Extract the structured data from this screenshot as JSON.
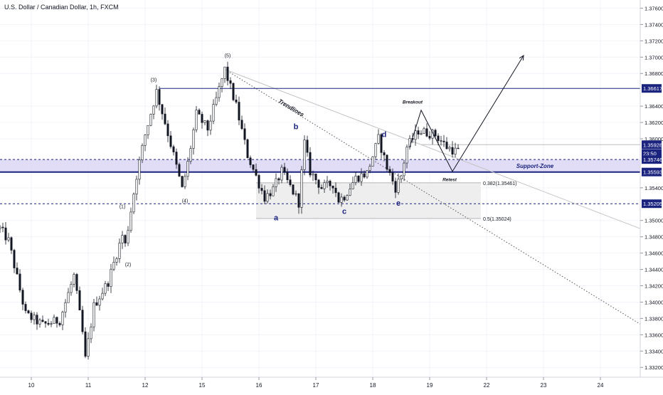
{
  "colors": {
    "background": "#ffffff",
    "grid": "#f0f3fa",
    "candle_up": "#ffffff",
    "candle_down": "#131722",
    "wick": "#131722",
    "axis_text": "#131722",
    "support_zone": "#d6cff2",
    "support_line": "#1a237e",
    "zone_box": "#ebebeb",
    "wave_label": "#1a237e",
    "tag_bg": "#1a237e",
    "tag_text": "#ffffff"
  },
  "chart_data": {
    "type": "candlestick",
    "title": "U.S. Dollar / Canadian Dollar, 1h, FXCM",
    "grid": true,
    "ylim": [
      1.3308,
      1.377
    ],
    "y_ticks": [
      {
        "value": 1.376,
        "label": "1.37600"
      },
      {
        "value": 1.374,
        "label": "1.37400"
      },
      {
        "value": 1.372,
        "label": "1.37200"
      },
      {
        "value": 1.37,
        "label": "1.37000"
      },
      {
        "value": 1.368,
        "label": "1.36800"
      },
      {
        "value": 1.364,
        "label": "1.36400"
      },
      {
        "value": 1.362,
        "label": "1.36200"
      },
      {
        "value": 1.36,
        "label": "1.36000"
      },
      {
        "value": 1.354,
        "label": "1.35400"
      },
      {
        "value": 1.35,
        "label": "1.35000"
      },
      {
        "value": 1.348,
        "label": "1.34800"
      },
      {
        "value": 1.346,
        "label": "1.34600"
      },
      {
        "value": 1.344,
        "label": "1.34400"
      },
      {
        "value": 1.342,
        "label": "1.34200"
      },
      {
        "value": 1.34,
        "label": "1.34000"
      },
      {
        "value": 1.338,
        "label": "1.33800"
      },
      {
        "value": 1.336,
        "label": "1.33600"
      },
      {
        "value": 1.334,
        "label": "1.33400"
      },
      {
        "value": 1.332,
        "label": "1.33200"
      }
    ],
    "x_ticks": [
      {
        "index": 8,
        "label": "10"
      },
      {
        "index": 28,
        "label": "11"
      },
      {
        "index": 48,
        "label": "12"
      },
      {
        "index": 68,
        "label": "15"
      },
      {
        "index": 88,
        "label": "16"
      },
      {
        "index": 108,
        "label": "17"
      },
      {
        "index": 128,
        "label": "18"
      },
      {
        "index": 148,
        "label": "19"
      },
      {
        "index": 168,
        "label": "22"
      },
      {
        "index": 188,
        "label": "23"
      },
      {
        "index": 208,
        "label": "24"
      }
    ],
    "x_range": [
      -3,
      222
    ],
    "price_tags": [
      {
        "value": 1.36617,
        "label": "1.36617"
      },
      {
        "value": 1.35928,
        "label": "1.35928"
      },
      {
        "value": 1.3582,
        "label": "23:50"
      },
      {
        "value": 1.35746,
        "label": "1.35746"
      },
      {
        "value": 1.35593,
        "label": "1.35593"
      },
      {
        "value": 1.35205,
        "label": "1.35205"
      }
    ],
    "key_points": [
      {
        "index": -3,
        "price": 1.349
      },
      {
        "index": 0,
        "price": 1.3475
      },
      {
        "index": 6,
        "price": 1.3385
      },
      {
        "index": 12,
        "price": 1.3372
      },
      {
        "index": 18,
        "price": 1.3378
      },
      {
        "index": 23,
        "price": 1.3432
      },
      {
        "index": 26,
        "price": 1.3362
      },
      {
        "index": 27,
        "price": 1.333
      },
      {
        "index": 30,
        "price": 1.3395
      },
      {
        "index": 35,
        "price": 1.3425
      },
      {
        "index": 40,
        "price": 1.3482
      },
      {
        "index": 41,
        "price": 1.347
      },
      {
        "index": 45,
        "price": 1.3555
      },
      {
        "index": 48,
        "price": 1.3605
      },
      {
        "index": 52,
        "price": 1.3658
      },
      {
        "index": 55,
        "price": 1.362
      },
      {
        "index": 58,
        "price": 1.358
      },
      {
        "index": 61,
        "price": 1.3538
      },
      {
        "index": 63,
        "price": 1.357
      },
      {
        "index": 66,
        "price": 1.363
      },
      {
        "index": 70,
        "price": 1.3612
      },
      {
        "index": 76,
        "price": 1.3685
      },
      {
        "index": 80,
        "price": 1.364
      },
      {
        "index": 84,
        "price": 1.358
      },
      {
        "index": 88,
        "price": 1.3545
      },
      {
        "index": 90,
        "price": 1.3528
      },
      {
        "index": 93,
        "price": 1.3538
      },
      {
        "index": 96,
        "price": 1.356
      },
      {
        "index": 100,
        "price": 1.3535
      },
      {
        "index": 102,
        "price": 1.3522
      },
      {
        "index": 104,
        "price": 1.3595
      },
      {
        "index": 106,
        "price": 1.356
      },
      {
        "index": 110,
        "price": 1.354
      },
      {
        "index": 114,
        "price": 1.3545
      },
      {
        "index": 116,
        "price": 1.3525
      },
      {
        "index": 118,
        "price": 1.353
      },
      {
        "index": 122,
        "price": 1.3552
      },
      {
        "index": 126,
        "price": 1.3558
      },
      {
        "index": 130,
        "price": 1.36
      },
      {
        "index": 133,
        "price": 1.3565
      },
      {
        "index": 136,
        "price": 1.354
      },
      {
        "index": 138,
        "price": 1.3555
      },
      {
        "index": 140,
        "price": 1.359
      },
      {
        "index": 144,
        "price": 1.361
      },
      {
        "index": 150,
        "price": 1.3605
      },
      {
        "index": 154,
        "price": 1.359
      },
      {
        "index": 157,
        "price": 1.3585
      }
    ],
    "candle_end_index": 158,
    "trendlines": [
      {
        "kind": "dotted",
        "p1": {
          "index": 76,
          "price": 1.3685
        },
        "p2": {
          "index": 222,
          "price": 1.3373
        }
      },
      {
        "kind": "solid-light",
        "p1": {
          "index": 76,
          "price": 1.3685
        },
        "p2": {
          "index": 222,
          "price": 1.349
        }
      },
      {
        "kind": "horizontal",
        "p1": {
          "index": 53,
          "price": 1.36617
        },
        "p2": {
          "index": 222,
          "price": 1.36617
        }
      },
      {
        "kind": "horizontal-light",
        "p1": {
          "index": 145,
          "price": 1.35928
        },
        "p2": {
          "index": 222,
          "price": 1.35928
        }
      }
    ],
    "dashed_levels": [
      1.35746,
      1.35205
    ],
    "support_zone": {
      "top": 1.35746,
      "bottom": 1.35593,
      "label": "Support-Zone",
      "line": 1.35593
    },
    "fib_box": {
      "x_start": 87,
      "x_end": 166,
      "top": 1.35461,
      "bottom": 1.35024
    },
    "fib_levels": [
      {
        "value": 1.35461,
        "label": "0.382(1.35461)"
      },
      {
        "value": 1.35024,
        "label": "0.5(1.35024)"
      }
    ],
    "projection_path": [
      {
        "index": 141,
        "price": 1.359
      },
      {
        "index": 145,
        "price": 1.3635
      },
      {
        "index": 156,
        "price": 1.356
      },
      {
        "index": 181,
        "price": 1.3702
      }
    ],
    "annotations": [
      {
        "text": "(5)",
        "index": 77,
        "price": 1.37,
        "style": "wave"
      },
      {
        "text": "(3)",
        "index": 51,
        "price": 1.367,
        "style": "wave"
      },
      {
        "text": "(4)",
        "index": 62,
        "price": 1.3522,
        "style": "wave"
      },
      {
        "text": "(1)",
        "index": 40,
        "price": 1.3515,
        "style": "wave"
      },
      {
        "text": "(2)",
        "index": 42,
        "price": 1.3444,
        "style": "wave"
      },
      {
        "text": "Trendlines",
        "index": 99,
        "price": 1.3636,
        "style": "rotated"
      },
      {
        "text": "b",
        "index": 101,
        "price": 1.3612,
        "style": "letter"
      },
      {
        "text": "d",
        "index": 132,
        "price": 1.3602,
        "style": "letter"
      },
      {
        "text": "a",
        "index": 94,
        "price": 1.35,
        "style": "letter"
      },
      {
        "text": "c",
        "index": 118,
        "price": 1.3508,
        "style": "letter"
      },
      {
        "text": "e",
        "index": 137,
        "price": 1.3518,
        "style": "letter"
      },
      {
        "text": "Breakout",
        "index": 142,
        "price": 1.3643,
        "style": "bold-italic"
      },
      {
        "text": "Retest",
        "index": 155,
        "price": 1.3548,
        "style": "bold-italic"
      }
    ]
  }
}
